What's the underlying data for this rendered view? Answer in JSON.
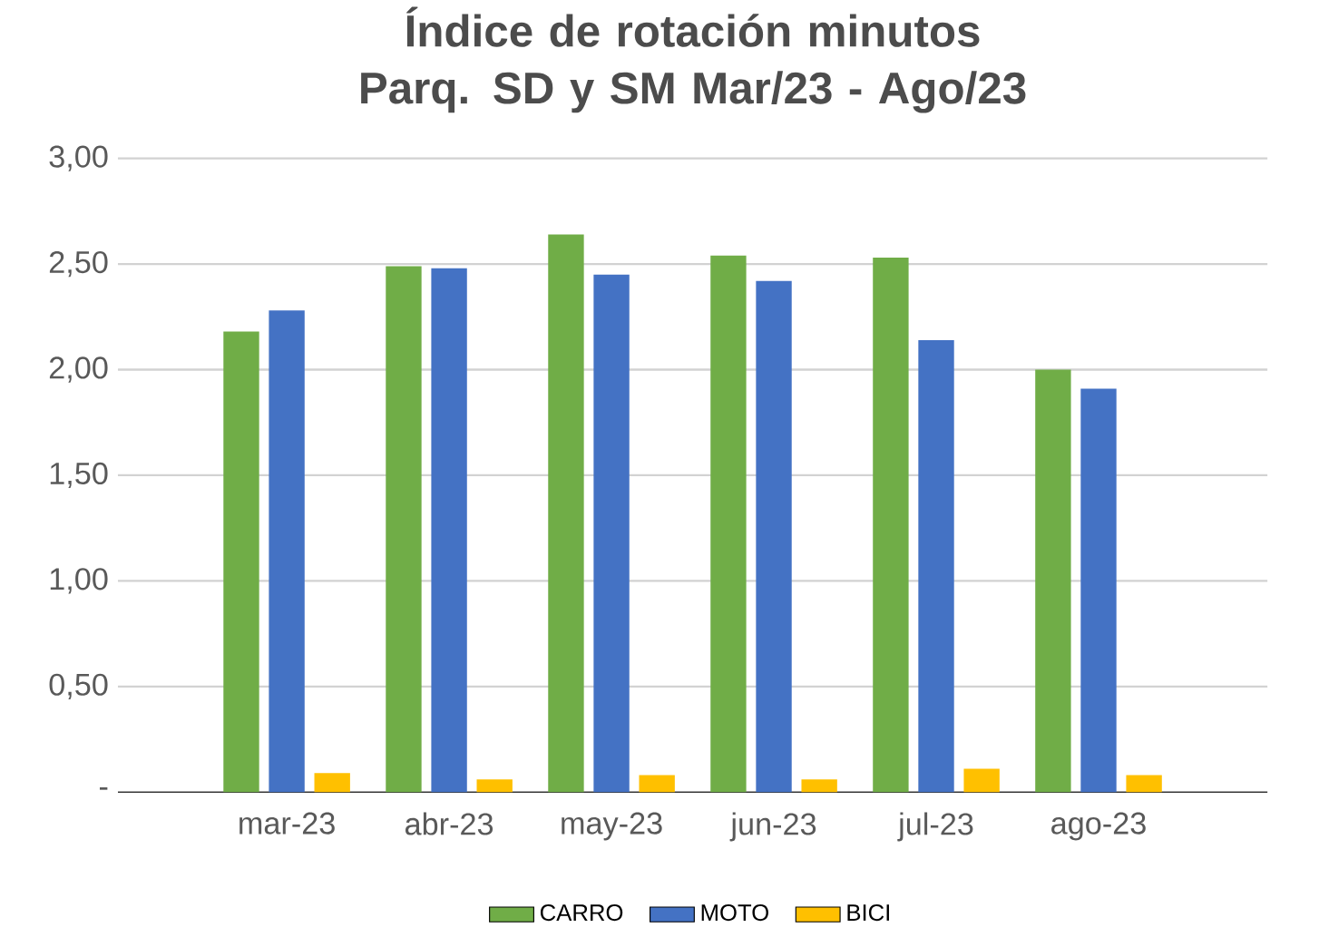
{
  "chart_data": {
    "type": "bar",
    "title": "Índice de rotación minutos Parq. SD y SM Mar/23 - Ago/23",
    "categories": [
      "mar-23",
      "abr-23",
      "may-23",
      "jun-23",
      "jul-23",
      "ago-23"
    ],
    "series": [
      {
        "name": "CARRO",
        "color": "#70ad47",
        "values": [
          2.18,
          2.49,
          2.64,
          2.54,
          2.53,
          2.0
        ]
      },
      {
        "name": "MOTO",
        "color": "#4472c4",
        "values": [
          2.28,
          2.48,
          2.45,
          2.42,
          2.14,
          1.91
        ]
      },
      {
        "name": "BICI",
        "color": "#ffc000",
        "values": [
          0.09,
          0.06,
          0.08,
          0.06,
          0.11,
          0.08
        ]
      }
    ],
    "ylim": [
      0,
      3
    ],
    "yticks": [
      {
        "value": 0,
        "label": "-"
      },
      {
        "value": 0.5,
        "label": "0,50"
      },
      {
        "value": 1,
        "label": "1,00"
      },
      {
        "value": 1.5,
        "label": "1,50"
      },
      {
        "value": 2,
        "label": "2,00"
      },
      {
        "value": 2.5,
        "label": "2,50"
      },
      {
        "value": 3,
        "label": "3,00"
      }
    ],
    "grid": "y",
    "legend": "bottom"
  }
}
